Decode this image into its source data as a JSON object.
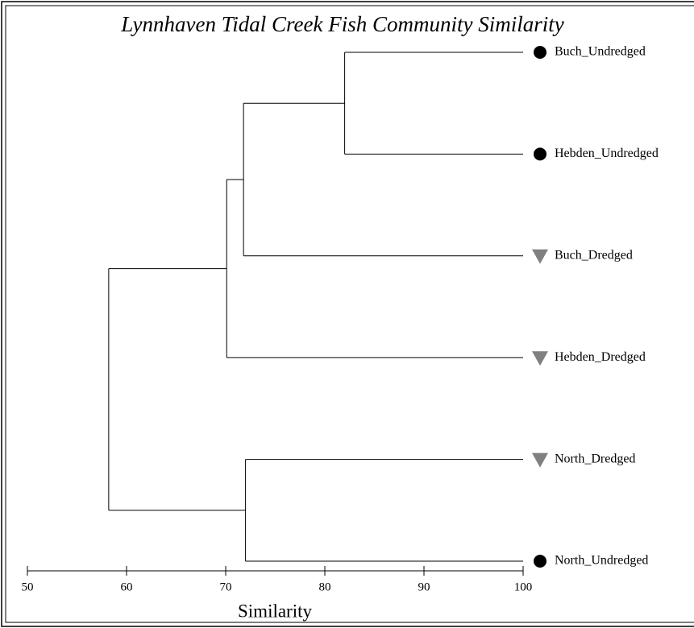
{
  "chart_data": {
    "type": "dendrogram",
    "title": "Lynnhaven Tidal Creek Fish Community Similarity",
    "x_label": "Similarity",
    "xlim": [
      50,
      100
    ],
    "xticks": [
      50,
      60,
      70,
      80,
      90,
      100
    ],
    "leaves": [
      {
        "name": "Buch_Undredged",
        "marker": "circle",
        "color": "#000000"
      },
      {
        "name": "Hebden_Undredged",
        "marker": "circle",
        "color": "#000000"
      },
      {
        "name": "Buch_Dredged",
        "marker": "triangle",
        "color": "#808080"
      },
      {
        "name": "Hebden_Dredged",
        "marker": "triangle",
        "color": "#808080"
      },
      {
        "name": "North_Dredged",
        "marker": "triangle",
        "color": "#808080"
      },
      {
        "name": "North_Undredged",
        "marker": "circle",
        "color": "#000000"
      }
    ],
    "merges": [
      {
        "left": 0,
        "right": 1,
        "value": 82.0
      },
      {
        "left": 6,
        "right": 2,
        "value": 71.8
      },
      {
        "left": 7,
        "right": 3,
        "value": 70.1
      },
      {
        "left": 4,
        "right": 5,
        "value": 72.0
      },
      {
        "left": 8,
        "right": 9,
        "value": 58.2
      }
    ]
  }
}
